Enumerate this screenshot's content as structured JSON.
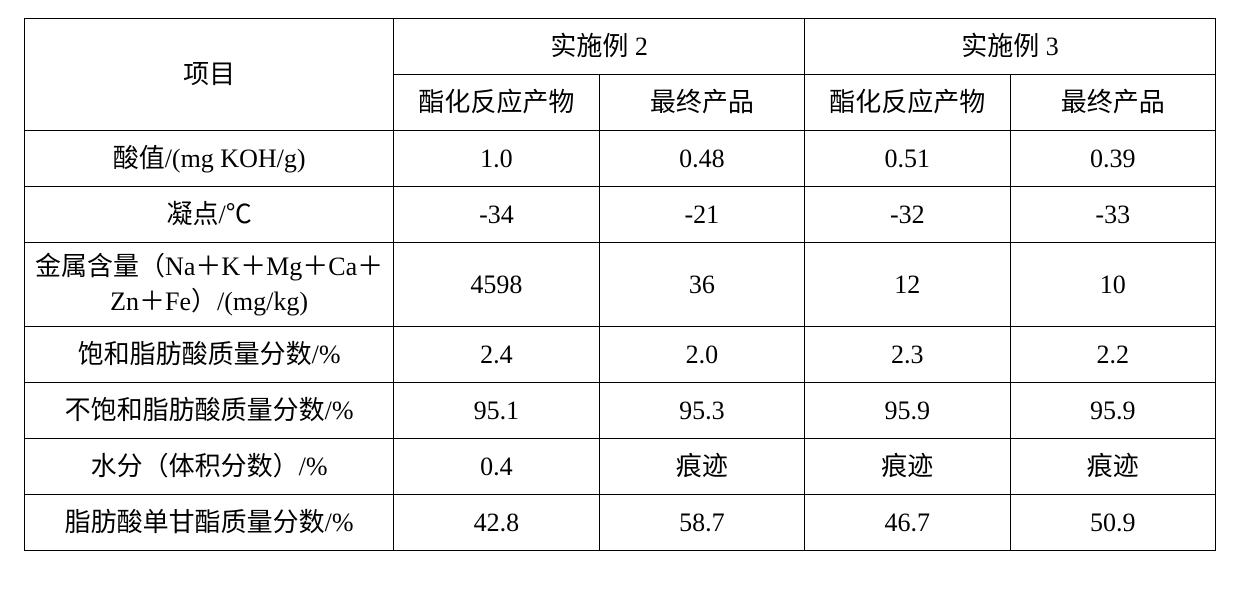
{
  "table": {
    "type": "table",
    "font_family": "SimSun / Times New Roman",
    "font_size_pt": 20,
    "border_color": "#000000",
    "background_color": "#ffffff",
    "text_color": "#000000",
    "column_widths_pct": [
      31,
      17.25,
      17.25,
      17.25,
      17.25
    ],
    "column_alignment": [
      "center",
      "center",
      "center",
      "center",
      "center"
    ],
    "header": {
      "row_header_label": "项目",
      "group_headers": [
        "实施例 2",
        "实施例 3"
      ],
      "sub_headers": [
        "酯化反应产物",
        "最终产品",
        "酯化反应产物",
        "最终产品"
      ]
    },
    "rows": [
      {
        "label": "酸值/(mg KOH/g)",
        "values": [
          "1.0",
          "0.48",
          "0.51",
          "0.39"
        ],
        "two_line": false
      },
      {
        "label": "凝点/℃",
        "values": [
          "-34",
          "-21",
          "-32",
          "-33"
        ],
        "two_line": false
      },
      {
        "label": "金属含量（Na＋K＋Mg＋Ca＋Zn＋Fe）/(mg/kg)",
        "values": [
          "4598",
          "36",
          "12",
          "10"
        ],
        "two_line": true
      },
      {
        "label": "饱和脂肪酸质量分数/%",
        "values": [
          "2.4",
          "2.0",
          "2.3",
          "2.2"
        ],
        "two_line": false
      },
      {
        "label": "不饱和脂肪酸质量分数/%",
        "values": [
          "95.1",
          "95.3",
          "95.9",
          "95.9"
        ],
        "two_line": true
      },
      {
        "label": "水分（体积分数）/%",
        "values": [
          "0.4",
          "痕迹",
          "痕迹",
          "痕迹"
        ],
        "two_line": false
      },
      {
        "label": "脂肪酸单甘酯质量分数/%",
        "values": [
          "42.8",
          "58.7",
          "46.7",
          "50.9"
        ],
        "two_line": true
      }
    ]
  }
}
